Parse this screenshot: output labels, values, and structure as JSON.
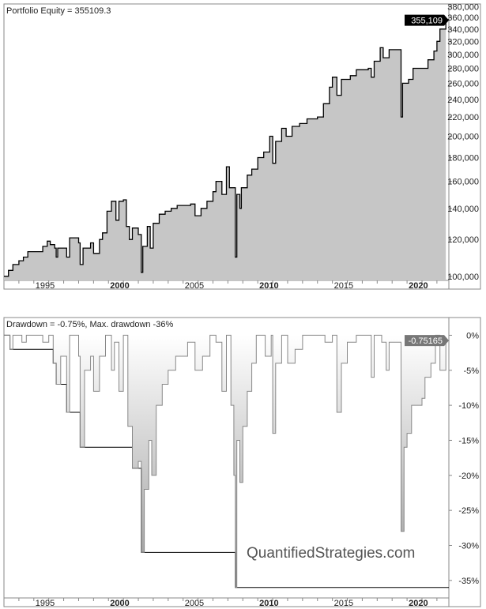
{
  "chart_data": [
    {
      "type": "area",
      "title": "Portfolio Equity = 355109.3",
      "y_scale": "log",
      "ylim": [
        98000,
        385000
      ],
      "xlim": [
        1993.0,
        2022.8
      ],
      "y_ticks": [
        100000,
        120000,
        140000,
        160000,
        180000,
        200000,
        220000,
        240000,
        260000,
        280000,
        300000,
        320000,
        340000,
        360000,
        380000
      ],
      "y_tick_labels": [
        "100,000",
        "120,000",
        "140,000",
        "160,000",
        "180,000",
        "200,000",
        "220,000",
        "240,000",
        "260,000",
        "280,000",
        "300,000",
        "320,000",
        "340,000",
        "360,000",
        "380,000"
      ],
      "x_ticks": [
        1995,
        2000,
        2005,
        2010,
        2015,
        2020
      ],
      "x_tick_labels": [
        "1995",
        "2000",
        "2005",
        "2010",
        "2015",
        "2020"
      ],
      "last_value_label": "355,109",
      "colors": {
        "line": "#000000",
        "fill": "#c6c6c6",
        "badge": "#000000"
      },
      "grid": false,
      "points": [
        [
          1993.0,
          100000
        ],
        [
          1993.3,
          103000
        ],
        [
          1993.6,
          106000
        ],
        [
          1994.0,
          108000
        ],
        [
          1994.3,
          110000
        ],
        [
          1994.6,
          113000
        ],
        [
          1995.2,
          113000
        ],
        [
          1995.6,
          116000
        ],
        [
          1995.9,
          119000
        ],
        [
          1996.1,
          117000
        ],
        [
          1996.4,
          115000
        ],
        [
          1996.5,
          110000
        ],
        [
          1996.6,
          115000
        ],
        [
          1997.0,
          115000
        ],
        [
          1997.2,
          110000
        ],
        [
          1997.4,
          121000
        ],
        [
          1997.9,
          121000
        ],
        [
          1998.0,
          118000
        ],
        [
          1998.1,
          106000
        ],
        [
          1998.3,
          115000
        ],
        [
          1998.8,
          118000
        ],
        [
          1999.0,
          112000
        ],
        [
          1999.4,
          120000
        ],
        [
          1999.6,
          124000
        ],
        [
          1999.9,
          138000
        ],
        [
          2000.2,
          145000
        ],
        [
          2000.5,
          132000
        ],
        [
          2000.7,
          145000
        ],
        [
          2001.0,
          146000
        ],
        [
          2001.2,
          128000
        ],
        [
          2001.4,
          120000
        ],
        [
          2001.6,
          127000
        ],
        [
          2002.0,
          123000
        ],
        [
          2002.2,
          102000
        ],
        [
          2002.3,
          116000
        ],
        [
          2002.6,
          128000
        ],
        [
          2002.8,
          115000
        ],
        [
          2003.0,
          130000
        ],
        [
          2003.4,
          136000
        ],
        [
          2003.8,
          138000
        ],
        [
          2004.2,
          140000
        ],
        [
          2004.6,
          142000
        ],
        [
          2005.5,
          143000
        ],
        [
          2005.8,
          135000
        ],
        [
          2006.2,
          140000
        ],
        [
          2006.6,
          145000
        ],
        [
          2007.0,
          152000
        ],
        [
          2007.2,
          160000
        ],
        [
          2007.6,
          150000
        ],
        [
          2007.9,
          172000
        ],
        [
          2008.1,
          155000
        ],
        [
          2008.3,
          155000
        ],
        [
          2008.5,
          110000
        ],
        [
          2008.6,
          150000
        ],
        [
          2008.8,
          140000
        ],
        [
          2008.9,
          155000
        ],
        [
          2009.3,
          165000
        ],
        [
          2009.6,
          170000
        ],
        [
          2010.0,
          180000
        ],
        [
          2010.4,
          185000
        ],
        [
          2010.8,
          200000
        ],
        [
          2011.0,
          175000
        ],
        [
          2011.2,
          195000
        ],
        [
          2011.6,
          208000
        ],
        [
          2011.9,
          200000
        ],
        [
          2012.3,
          210000
        ],
        [
          2012.8,
          213000
        ],
        [
          2013.3,
          218000
        ],
        [
          2014.0,
          220000
        ],
        [
          2014.4,
          235000
        ],
        [
          2014.8,
          255000
        ],
        [
          2015.0,
          268000
        ],
        [
          2015.3,
          245000
        ],
        [
          2015.6,
          265000
        ],
        [
          2016.2,
          270000
        ],
        [
          2016.6,
          278000
        ],
        [
          2017.4,
          280000
        ],
        [
          2017.6,
          268000
        ],
        [
          2017.8,
          290000
        ],
        [
          2018.2,
          310000
        ],
        [
          2018.4,
          295000
        ],
        [
          2018.8,
          307000
        ],
        [
          2019.5,
          307000
        ],
        [
          2019.6,
          220000
        ],
        [
          2019.7,
          260000
        ],
        [
          2020.1,
          265000
        ],
        [
          2020.4,
          280000
        ],
        [
          2021.2,
          280000
        ],
        [
          2021.4,
          292000
        ],
        [
          2021.8,
          305000
        ],
        [
          2022.0,
          320000
        ],
        [
          2022.2,
          340000
        ],
        [
          2022.6,
          355109
        ]
      ]
    },
    {
      "type": "area",
      "title": "Drawdown = -0.75%, Max. drawdown -36%",
      "ylim": [
        -37.5,
        0.5
      ],
      "xlim": [
        1993.0,
        2022.8
      ],
      "y_ticks": [
        0,
        -5,
        -10,
        -15,
        -20,
        -25,
        -30,
        -35
      ],
      "y_tick_labels": [
        "0%",
        "-5%",
        "-10%",
        "-15%",
        "-20%",
        "-25%",
        "-30%",
        "-35%"
      ],
      "x_ticks": [
        1995,
        2000,
        2005,
        2010,
        2015,
        2020
      ],
      "x_tick_labels": [
        "1995",
        "2000",
        "2005",
        "2010",
        "2015",
        "2020"
      ],
      "last_value_label": "-0.75165",
      "colors": {
        "line": "#888888",
        "fill": "#d8d8d8",
        "max_line": "#000000",
        "badge": "#777777"
      },
      "grid": false,
      "points": [
        [
          1993.0,
          0
        ],
        [
          1993.4,
          -2
        ],
        [
          1993.6,
          0
        ],
        [
          1994.2,
          -1
        ],
        [
          1994.5,
          0
        ],
        [
          1995.3,
          0
        ],
        [
          1995.6,
          -1
        ],
        [
          1996.0,
          0
        ],
        [
          1996.3,
          -4
        ],
        [
          1996.5,
          -7
        ],
        [
          1996.8,
          -3
        ],
        [
          1997.2,
          -11
        ],
        [
          1997.4,
          0
        ],
        [
          1998.0,
          -3
        ],
        [
          1998.1,
          -16
        ],
        [
          1998.4,
          -5
        ],
        [
          1998.8,
          -3
        ],
        [
          1999.0,
          -8
        ],
        [
          1999.4,
          -3
        ],
        [
          1999.8,
          0
        ],
        [
          2000.2,
          -5
        ],
        [
          2000.4,
          -1
        ],
        [
          2000.7,
          -8
        ],
        [
          2001.0,
          0
        ],
        [
          2001.3,
          -13
        ],
        [
          2001.6,
          -19
        ],
        [
          2002.0,
          -18
        ],
        [
          2002.2,
          -31
        ],
        [
          2002.4,
          -22
        ],
        [
          2002.7,
          -15
        ],
        [
          2002.9,
          -20
        ],
        [
          2003.2,
          -10
        ],
        [
          2003.6,
          -7
        ],
        [
          2004.0,
          -5
        ],
        [
          2004.5,
          -3
        ],
        [
          2005.3,
          -1
        ],
        [
          2005.8,
          -5
        ],
        [
          2006.3,
          -3
        ],
        [
          2006.8,
          0
        ],
        [
          2007.2,
          -1
        ],
        [
          2007.6,
          -8
        ],
        [
          2007.9,
          0
        ],
        [
          2008.2,
          -10
        ],
        [
          2008.4,
          -20
        ],
        [
          2008.5,
          -36
        ],
        [
          2008.6,
          -15
        ],
        [
          2008.8,
          -21
        ],
        [
          2009.0,
          -13
        ],
        [
          2009.3,
          -8
        ],
        [
          2009.6,
          -4
        ],
        [
          2009.9,
          0
        ],
        [
          2010.5,
          -3
        ],
        [
          2010.9,
          0
        ],
        [
          2011.0,
          -14
        ],
        [
          2011.2,
          -4
        ],
        [
          2011.6,
          0
        ],
        [
          2012.0,
          -4
        ],
        [
          2012.5,
          -2
        ],
        [
          2013.0,
          0
        ],
        [
          2014.0,
          0
        ],
        [
          2014.5,
          -1
        ],
        [
          2015.0,
          0
        ],
        [
          2015.3,
          -11
        ],
        [
          2015.6,
          -4
        ],
        [
          2016.0,
          -1
        ],
        [
          2016.6,
          0
        ],
        [
          2017.4,
          0
        ],
        [
          2017.6,
          -6
        ],
        [
          2017.8,
          0
        ],
        [
          2018.3,
          -1
        ],
        [
          2018.6,
          -5
        ],
        [
          2018.8,
          -1
        ],
        [
          2019.5,
          -1
        ],
        [
          2019.6,
          -28
        ],
        [
          2019.8,
          -16
        ],
        [
          2020.0,
          -14
        ],
        [
          2020.3,
          -10
        ],
        [
          2021.0,
          -9
        ],
        [
          2021.2,
          -6
        ],
        [
          2021.6,
          -4
        ],
        [
          2021.9,
          0
        ],
        [
          2022.2,
          -5
        ],
        [
          2022.6,
          -0.75
        ]
      ]
    }
  ],
  "watermark": "QuantifiedStrategies.com"
}
